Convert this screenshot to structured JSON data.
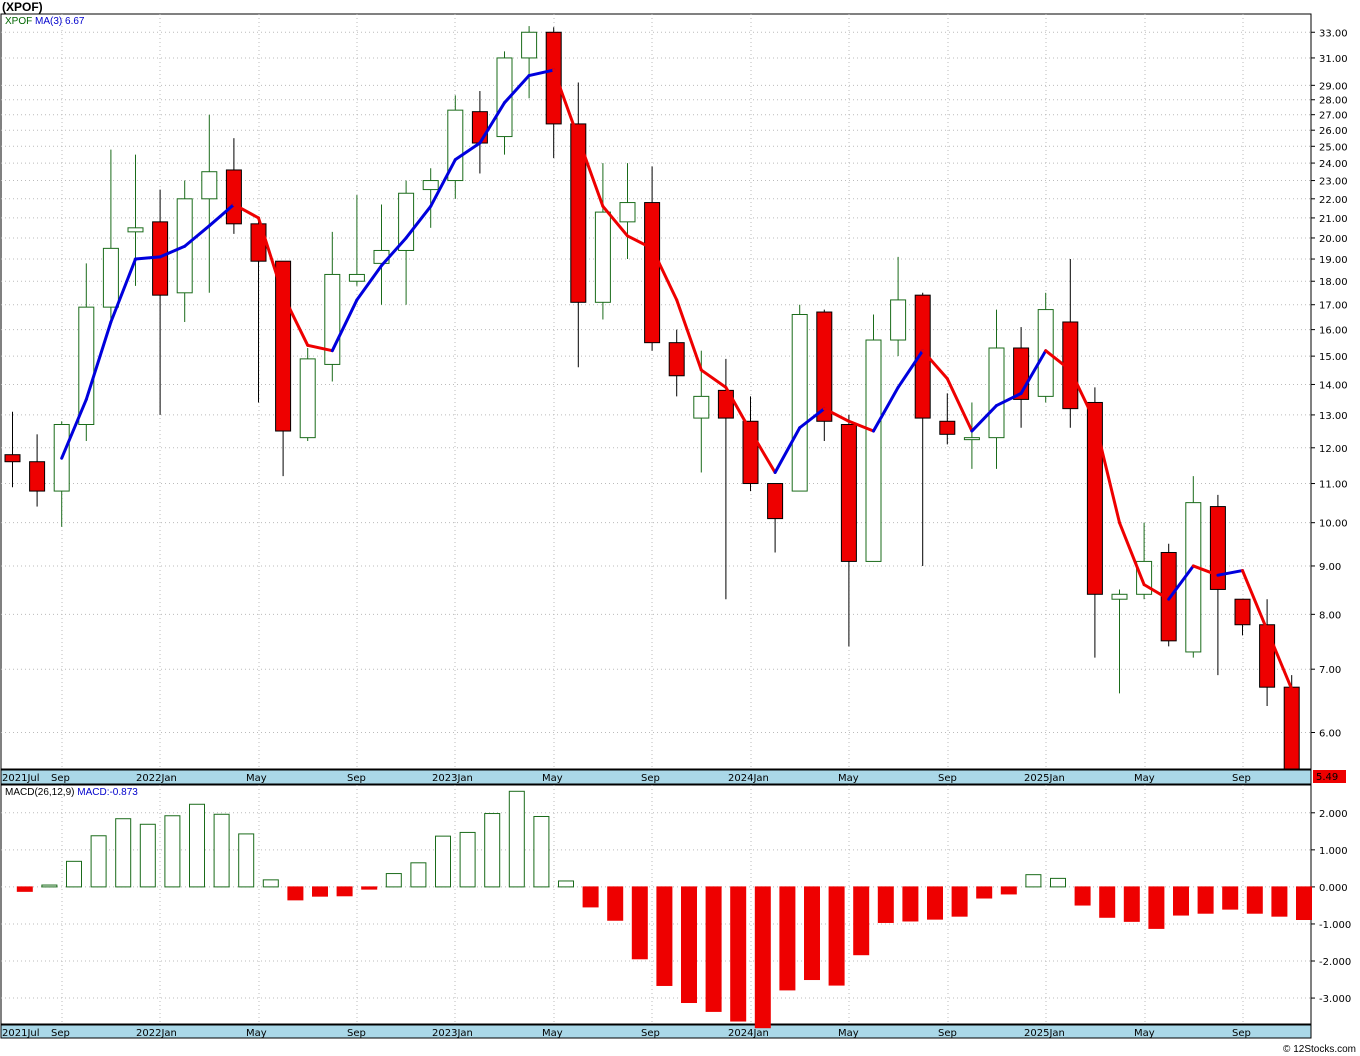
{
  "title": "(XPOF)",
  "legend_top": {
    "symbol": "XPOF",
    "ma_label": "MA(3)",
    "ma_value": "6.67"
  },
  "legend_bottom": {
    "macd_label": "MACD(26,12,9)",
    "macd_value": "MACD:-0.873"
  },
  "last_price_label": "5.49",
  "credit": "© 12Stocks.com",
  "colors": {
    "up_outline": "#1a6b1a",
    "down_fill": "#ee0000",
    "ma_up": "#0000dd",
    "ma_down": "#ee0000",
    "axis_band": "#aad8e8"
  },
  "chart_data": [
    {
      "type": "candlestick",
      "scale": "log",
      "ylim": [
        5.49,
        34.5
      ],
      "y_ticks": [
        "6.00",
        "7.00",
        "8.00",
        "9.00",
        "10.00",
        "11.00",
        "12.00",
        "13.00",
        "14.00",
        "15.00",
        "16.00",
        "17.00",
        "18.00",
        "19.00",
        "20.00",
        "21.00",
        "22.00",
        "23.00",
        "24.00",
        "25.00",
        "26.00",
        "27.00",
        "28.00",
        "29.00",
        "31.00",
        "33.00"
      ],
      "x_tick_labels": [
        "2021Jul",
        "Sep",
        "2022Jan",
        "May",
        "Sep",
        "2023Jan",
        "May",
        "Sep",
        "2024Jan",
        "May",
        "Sep",
        "2025Jan",
        "May",
        "Sep"
      ],
      "candles": [
        [
          11.8,
          13.1,
          10.9,
          11.6
        ],
        [
          11.6,
          12.4,
          10.4,
          10.8
        ],
        [
          10.8,
          12.8,
          9.9,
          12.7
        ],
        [
          12.7,
          18.8,
          12.2,
          16.9
        ],
        [
          16.9,
          24.8,
          16.2,
          19.5
        ],
        [
          20.3,
          24.5,
          17.8,
          20.5
        ],
        [
          20.8,
          22.5,
          13.0,
          17.4
        ],
        [
          17.5,
          23.0,
          16.3,
          22.0
        ],
        [
          22.0,
          27.0,
          17.5,
          23.5
        ],
        [
          23.6,
          25.5,
          20.2,
          20.7
        ],
        [
          20.7,
          21.0,
          13.4,
          18.9
        ],
        [
          18.9,
          18.9,
          11.2,
          12.5
        ],
        [
          12.3,
          15.3,
          12.2,
          14.9
        ],
        [
          14.7,
          20.3,
          14.1,
          18.3
        ],
        [
          18.0,
          22.2,
          17.8,
          18.3
        ],
        [
          18.8,
          21.7,
          17.0,
          19.4
        ],
        [
          19.4,
          23.0,
          17.0,
          22.3
        ],
        [
          22.5,
          23.7,
          20.5,
          23.0
        ],
        [
          23.0,
          28.3,
          22.0,
          27.3
        ],
        [
          27.2,
          28.6,
          23.4,
          25.2
        ],
        [
          25.6,
          31.5,
          24.5,
          31.0
        ],
        [
          31.0,
          33.5,
          28.1,
          33.0
        ],
        [
          33.0,
          33.4,
          24.3,
          26.4
        ],
        [
          26.4,
          29.2,
          14.6,
          17.1
        ],
        [
          17.1,
          24.0,
          16.4,
          21.3
        ],
        [
          20.8,
          24.0,
          19.0,
          21.8
        ],
        [
          21.8,
          23.8,
          15.2,
          15.5
        ],
        [
          15.5,
          16.0,
          13.6,
          14.3
        ],
        [
          12.9,
          15.2,
          11.3,
          13.6
        ],
        [
          13.8,
          14.9,
          8.3,
          12.9
        ],
        [
          12.8,
          13.6,
          10.8,
          11.0
        ],
        [
          11.0,
          11.0,
          9.3,
          10.1
        ],
        [
          10.8,
          17.0,
          10.8,
          16.6
        ],
        [
          16.7,
          16.8,
          12.2,
          12.8
        ],
        [
          12.7,
          13.0,
          7.4,
          9.1
        ],
        [
          9.1,
          16.6,
          9.1,
          15.6
        ],
        [
          15.6,
          19.1,
          15.0,
          17.2
        ],
        [
          17.4,
          17.5,
          9.0,
          12.9
        ],
        [
          12.8,
          13.7,
          12.1,
          12.4
        ],
        [
          12.3,
          13.4,
          11.4,
          12.3
        ],
        [
          12.3,
          16.8,
          11.4,
          15.3
        ],
        [
          15.3,
          16.1,
          12.6,
          13.5
        ],
        [
          13.6,
          17.5,
          13.4,
          16.8
        ],
        [
          16.3,
          19.0,
          12.6,
          13.2
        ],
        [
          13.4,
          13.9,
          7.2,
          8.4
        ],
        [
          8.3,
          8.5,
          6.6,
          8.4
        ],
        [
          8.4,
          10.0,
          8.3,
          9.1
        ],
        [
          9.3,
          9.5,
          7.4,
          7.5
        ],
        [
          7.3,
          11.2,
          7.2,
          10.5
        ],
        [
          10.4,
          10.7,
          6.9,
          8.5
        ],
        [
          8.3,
          8.3,
          7.6,
          7.8
        ],
        [
          7.8,
          8.3,
          6.4,
          6.7
        ],
        [
          6.7,
          6.9,
          5.49,
          5.49
        ]
      ],
      "ma3": [
        null,
        null,
        11.7,
        13.5,
        16.3,
        19.0,
        19.1,
        19.6,
        20.6,
        21.7,
        21.0,
        17.4,
        15.4,
        15.2,
        17.2,
        18.7,
        20.0,
        21.6,
        24.2,
        25.2,
        27.8,
        29.7,
        30.1,
        25.5,
        21.6,
        20.1,
        19.5,
        17.2,
        14.5,
        13.9,
        12.5,
        11.3,
        12.6,
        13.2,
        12.8,
        12.5,
        13.9,
        15.2,
        14.2,
        12.5,
        13.3,
        13.7,
        15.2,
        14.5,
        12.8,
        10.0,
        8.6,
        8.3,
        9.0,
        8.8,
        8.9,
        7.7,
        6.67
      ]
    },
    {
      "type": "bar",
      "title": "MACD(26,12,9)",
      "ylim": [
        -3.7,
        2.75
      ],
      "y_ticks": [
        "2.000",
        "1.000",
        "0.000",
        "-1.000",
        "-2.000",
        "-3.000"
      ],
      "values": [
        -0.12,
        0.05,
        0.69,
        1.38,
        1.84,
        1.69,
        1.92,
        2.23,
        1.96,
        1.43,
        0.19,
        -0.35,
        -0.25,
        -0.24,
        -0.06,
        0.36,
        0.65,
        1.37,
        1.47,
        1.98,
        2.58,
        1.9,
        0.16,
        -0.54,
        -0.9,
        -1.94,
        -2.66,
        -3.12,
        -3.36,
        -3.62,
        -3.8,
        -2.78,
        -2.5,
        -2.65,
        -1.83,
        -0.96,
        -0.92,
        -0.87,
        -0.79,
        -0.3,
        -0.19,
        0.33,
        0.23,
        -0.49,
        -0.82,
        -0.93,
        -1.12,
        -0.76,
        -0.71,
        -0.6,
        -0.71,
        -0.79,
        -0.88
      ]
    }
  ]
}
